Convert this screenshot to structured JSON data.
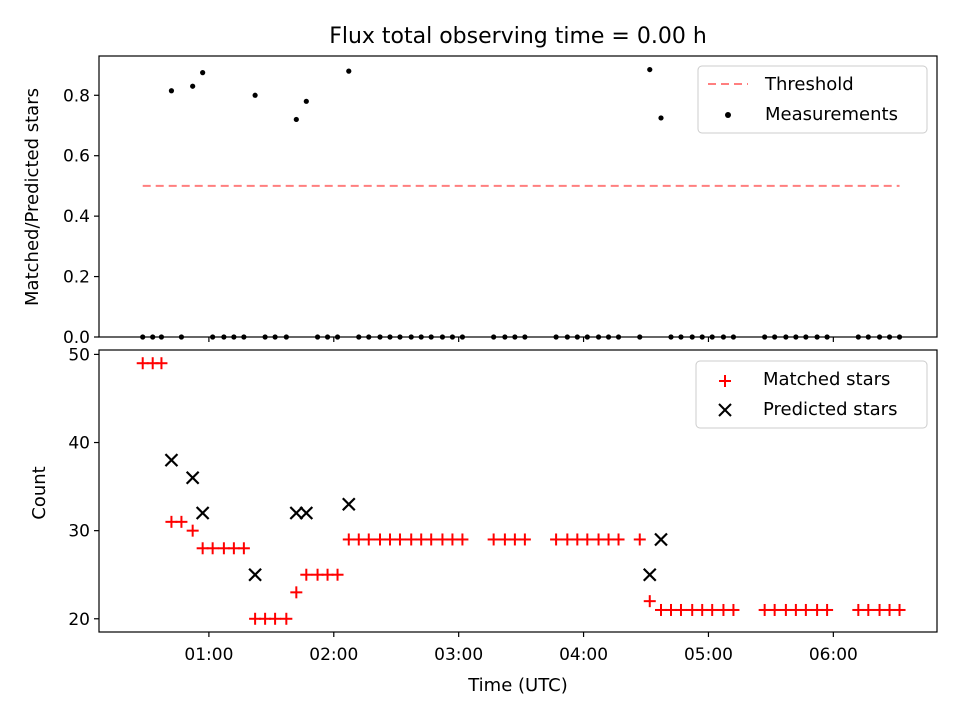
{
  "chart_data": [
    {
      "type": "scatter",
      "title": "Flux total observing time = 0.00 h",
      "ylabel": "Matched/Predicted stars",
      "xlabel": "",
      "xlim": [
        0.12,
        6.83
      ],
      "ylim": [
        0.0,
        0.93
      ],
      "yticks": [
        {
          "value": 0.0,
          "label": "0.0"
        },
        {
          "value": 0.2,
          "label": "0.2"
        },
        {
          "value": 0.4,
          "label": "0.4"
        },
        {
          "value": 0.6,
          "label": "0.6"
        },
        {
          "value": 0.8,
          "label": "0.8"
        }
      ],
      "xticks": [
        1,
        2,
        3,
        4,
        5,
        6
      ],
      "legend": {
        "position": "top-right",
        "threshold_label": "Threshold",
        "measurements_label": "Measurements"
      },
      "threshold": {
        "value": 0.5,
        "x_range": [
          0.47,
          6.53
        ],
        "color": "#ff7f7f"
      },
      "measurements_color": "#000000",
      "series": [
        {
          "name": "Measurements",
          "x": [
            0.47,
            0.55,
            0.62,
            0.7,
            0.78,
            0.87,
            0.95,
            1.03,
            1.12,
            1.2,
            1.28,
            1.37,
            1.45,
            1.53,
            1.62,
            1.7,
            1.78,
            1.87,
            1.95,
            2.03,
            2.12,
            2.2,
            2.28,
            2.37,
            2.45,
            2.53,
            2.62,
            2.7,
            2.78,
            2.87,
            2.95,
            3.03,
            3.28,
            3.37,
            3.45,
            3.53,
            3.78,
            3.87,
            3.95,
            4.03,
            4.12,
            4.2,
            4.28,
            4.45,
            4.53,
            4.62,
            4.7,
            4.78,
            4.87,
            4.95,
            5.03,
            5.12,
            5.2,
            5.45,
            5.53,
            5.62,
            5.7,
            5.78,
            5.87,
            5.95,
            6.2,
            6.28,
            6.37,
            6.45,
            6.53
          ],
          "y": [
            0,
            0,
            0,
            0.815,
            0,
            0.83,
            0.875,
            0,
            0,
            0,
            0,
            0.8,
            0,
            0,
            0,
            0.72,
            0.78,
            0,
            0,
            0,
            0.88,
            0,
            0,
            0,
            0,
            0,
            0,
            0,
            0,
            0,
            0,
            0,
            0,
            0,
            0,
            0,
            0,
            0,
            0,
            0,
            0,
            0,
            0,
            0,
            0.885,
            0.725,
            0,
            0,
            0,
            0,
            0,
            0,
            0,
            0,
            0,
            0,
            0,
            0,
            0,
            0,
            0,
            0,
            0,
            0,
            0
          ]
        }
      ]
    },
    {
      "type": "scatter",
      "title": "",
      "ylabel": "Count",
      "xlabel": "Time (UTC)",
      "xlim": [
        0.12,
        6.83
      ],
      "ylim": [
        18.5,
        50.5
      ],
      "yticks": [
        {
          "value": 20,
          "label": "20"
        },
        {
          "value": 30,
          "label": "30"
        },
        {
          "value": 40,
          "label": "40"
        },
        {
          "value": 50,
          "label": "50"
        }
      ],
      "xticks": [
        {
          "value": 1,
          "label": "01:00"
        },
        {
          "value": 2,
          "label": "02:00"
        },
        {
          "value": 3,
          "label": "03:00"
        },
        {
          "value": 4,
          "label": "04:00"
        },
        {
          "value": 5,
          "label": "05:00"
        },
        {
          "value": 6,
          "label": "06:00"
        }
      ],
      "legend": {
        "position": "top-right"
      },
      "series": [
        {
          "name": "Matched stars",
          "marker": "plus",
          "color": "#ff0000",
          "x": [
            0.47,
            0.55,
            0.62,
            0.7,
            0.78,
            0.87,
            0.95,
            1.03,
            1.12,
            1.2,
            1.28,
            1.37,
            1.45,
            1.53,
            1.62,
            1.7,
            1.78,
            1.87,
            1.95,
            2.03,
            2.12,
            2.2,
            2.28,
            2.37,
            2.45,
            2.53,
            2.62,
            2.7,
            2.78,
            2.87,
            2.95,
            3.03,
            3.28,
            3.37,
            3.45,
            3.53,
            3.78,
            3.87,
            3.95,
            4.03,
            4.12,
            4.2,
            4.28,
            4.45,
            4.53,
            4.62,
            4.7,
            4.78,
            4.87,
            4.95,
            5.03,
            5.12,
            5.2,
            5.45,
            5.53,
            5.62,
            5.7,
            5.78,
            5.87,
            5.95,
            6.2,
            6.28,
            6.37,
            6.45,
            6.53
          ],
          "y": [
            49,
            49,
            49,
            31,
            31,
            30,
            28,
            28,
            28,
            28,
            28,
            20,
            20,
            20,
            20,
            23,
            25,
            25,
            25,
            25,
            29,
            29,
            29,
            29,
            29,
            29,
            29,
            29,
            29,
            29,
            29,
            29,
            29,
            29,
            29,
            29,
            29,
            29,
            29,
            29,
            29,
            29,
            29,
            29,
            22,
            21,
            21,
            21,
            21,
            21,
            21,
            21,
            21,
            21,
            21,
            21,
            21,
            21,
            21,
            21,
            21,
            21,
            21,
            21,
            21
          ]
        },
        {
          "name": "Predicted stars",
          "marker": "x",
          "color": "#000000",
          "x": [
            0.7,
            0.87,
            0.95,
            1.37,
            1.7,
            1.78,
            2.12,
            4.53,
            4.62
          ],
          "y": [
            38,
            36,
            32,
            25,
            32,
            32,
            33,
            25,
            29
          ]
        }
      ]
    }
  ]
}
